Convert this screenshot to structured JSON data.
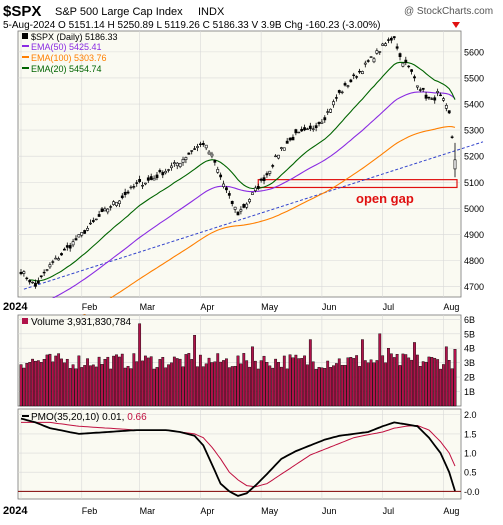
{
  "header": {
    "symbol": "$SPX",
    "name": "S&P 500 Large Cap Index",
    "exchange": "INDX",
    "watermark": "@ StockCharts.com",
    "quote_line": "5-Aug-2024   O 5151.14  H 5250.89  L 5119.26  C 5186.33  V 3.9B  Chg -160.23 (-3.00%)"
  },
  "legend": [
    {
      "label": "$SPX (Daily) 5186.33",
      "color": "#000000"
    },
    {
      "label": "EMA(50) 5425.41",
      "color": "#8a2be2"
    },
    {
      "label": "EMA(100) 5303.76",
      "color": "#ff7f00"
    },
    {
      "label": "EMA(20) 5454.74",
      "color": "#006400"
    }
  ],
  "annotation": {
    "text": "open gap",
    "color": "#e01010"
  },
  "volume_label": "Volume 3,931,830,784",
  "pmo_label_prefix": "PMO(35,20,10)",
  "pmo_value1": "0.01",
  "pmo_value2": "0.66",
  "footer_year": "2024",
  "colors": {
    "panel_bg": "#fafaf2",
    "ema20": "#006400",
    "ema50": "#8a2be2",
    "ema100": "#ff7f00",
    "trendline": "#3344cc",
    "volume_fill": "#b0124a",
    "gap": "#e01010",
    "pmo_signal": "#c01040",
    "pmo_zero": "#800000"
  },
  "chart_data": [
    {
      "type": "candlestick",
      "title": "$SPX S&P 500 Large Cap Index",
      "x_ticks": [
        "2024",
        "Feb",
        "Mar",
        "Apr",
        "May",
        "Jun",
        "Jul",
        "Aug"
      ],
      "y_ticks": [
        4700,
        4800,
        4900,
        5000,
        5100,
        5200,
        5300,
        5400,
        5500,
        5600
      ],
      "ylim": [
        4660,
        5680
      ],
      "price_anchors": [
        [
          0,
          4760
        ],
        [
          5,
          4700
        ],
        [
          10,
          4780
        ],
        [
          20,
          4890
        ],
        [
          30,
          5000
        ],
        [
          40,
          5090
        ],
        [
          45,
          5110
        ],
        [
          55,
          5180
        ],
        [
          60,
          5230
        ],
        [
          63,
          5250
        ],
        [
          66,
          5200
        ],
        [
          69,
          5120
        ],
        [
          72,
          5040
        ],
        [
          75,
          4980
        ],
        [
          78,
          5020
        ],
        [
          81,
          5070
        ],
        [
          85,
          5130
        ],
        [
          90,
          5230
        ],
        [
          95,
          5280
        ],
        [
          100,
          5300
        ],
        [
          105,
          5350
        ],
        [
          110,
          5440
        ],
        [
          115,
          5500
        ],
        [
          120,
          5560
        ],
        [
          125,
          5620
        ],
        [
          129,
          5660
        ],
        [
          131,
          5580
        ],
        [
          134,
          5540
        ],
        [
          137,
          5480
        ],
        [
          140,
          5430
        ],
        [
          142,
          5410
        ],
        [
          144,
          5440
        ],
        [
          146,
          5410
        ],
        [
          148,
          5360
        ],
        [
          150,
          5186
        ]
      ],
      "ema20_end": 5454.74,
      "ema50_end": 5425.41,
      "ema100_end": 5303.76,
      "gap_zone": [
        5080,
        5110
      ]
    },
    {
      "type": "bar",
      "title": "Volume",
      "y_ticks": [
        "1B",
        "2B",
        "3B",
        "4B",
        "5B",
        "6B"
      ],
      "ylim": [
        0,
        6.3
      ],
      "last_value": 3931830784
    },
    {
      "type": "line",
      "title": "PMO(35,20,10)",
      "y_ticks": [
        -0.0,
        0.5,
        1.0,
        1.5,
        2.0
      ],
      "ylim": [
        -0.2,
        2.15
      ],
      "pmo_anchors": [
        [
          0,
          1.9
        ],
        [
          5,
          1.8
        ],
        [
          10,
          1.65
        ],
        [
          20,
          1.5
        ],
        [
          30,
          1.55
        ],
        [
          40,
          1.6
        ],
        [
          50,
          1.6
        ],
        [
          55,
          1.55
        ],
        [
          60,
          1.45
        ],
        [
          63,
          1.2
        ],
        [
          66,
          0.7
        ],
        [
          69,
          0.2
        ],
        [
          72,
          0.0
        ],
        [
          75,
          -0.12
        ],
        [
          78,
          -0.05
        ],
        [
          81,
          0.15
        ],
        [
          85,
          0.45
        ],
        [
          90,
          0.85
        ],
        [
          95,
          1.05
        ],
        [
          100,
          1.2
        ],
        [
          105,
          1.35
        ],
        [
          110,
          1.45
        ],
        [
          115,
          1.5
        ],
        [
          120,
          1.55
        ],
        [
          125,
          1.7
        ],
        [
          129,
          1.8
        ],
        [
          133,
          1.75
        ],
        [
          137,
          1.7
        ],
        [
          141,
          1.4
        ],
        [
          145,
          1.0
        ],
        [
          148,
          0.5
        ],
        [
          150,
          0.01
        ]
      ],
      "signal_anchors": [
        [
          0,
          1.8
        ],
        [
          10,
          1.8
        ],
        [
          20,
          1.7
        ],
        [
          30,
          1.65
        ],
        [
          40,
          1.6
        ],
        [
          50,
          1.6
        ],
        [
          55,
          1.55
        ],
        [
          60,
          1.5
        ],
        [
          63,
          1.4
        ],
        [
          66,
          1.15
        ],
        [
          69,
          0.85
        ],
        [
          72,
          0.5
        ],
        [
          75,
          0.3
        ],
        [
          78,
          0.15
        ],
        [
          81,
          0.12
        ],
        [
          85,
          0.2
        ],
        [
          90,
          0.45
        ],
        [
          95,
          0.7
        ],
        [
          100,
          0.95
        ],
        [
          105,
          1.1
        ],
        [
          110,
          1.25
        ],
        [
          115,
          1.4
        ],
        [
          120,
          1.48
        ],
        [
          125,
          1.55
        ],
        [
          129,
          1.65
        ],
        [
          133,
          1.7
        ],
        [
          137,
          1.72
        ],
        [
          141,
          1.6
        ],
        [
          145,
          1.3
        ],
        [
          148,
          1.0
        ],
        [
          150,
          0.66
        ]
      ]
    }
  ]
}
